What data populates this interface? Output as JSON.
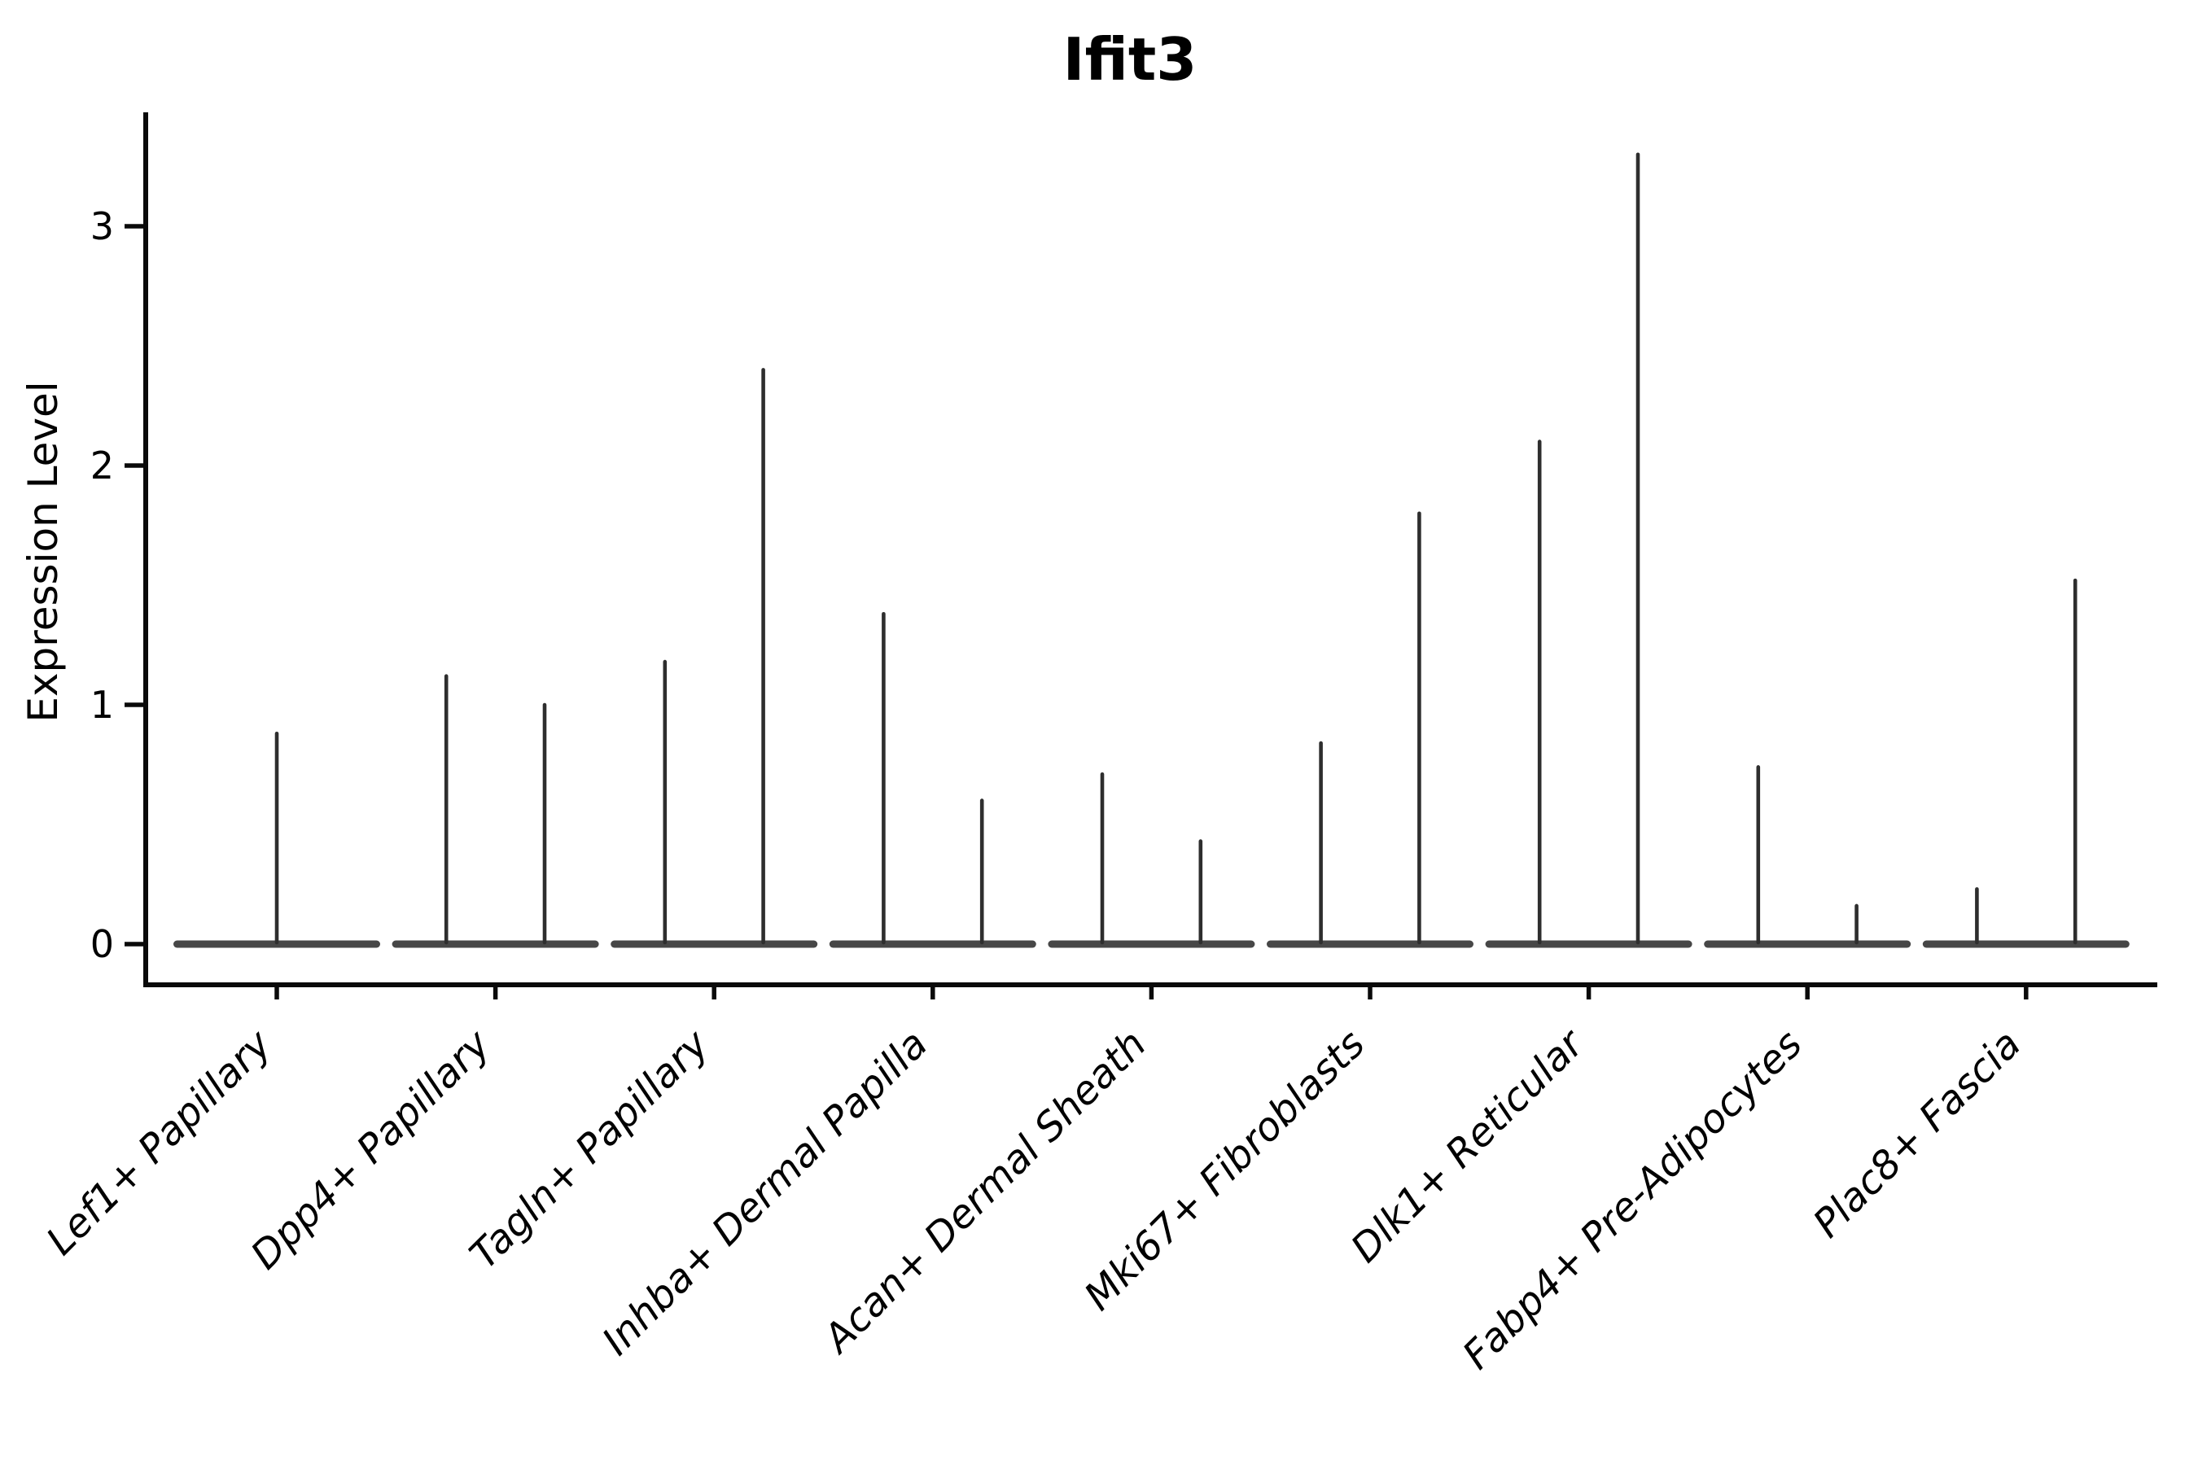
{
  "figure": {
    "title": "Ifit3",
    "y_axis_label": "Expression Level"
  },
  "chart_data": {
    "type": "violin",
    "title": "Ifit3",
    "xlabel": "",
    "ylabel": "Expression Level",
    "yticks": [
      0,
      1,
      2,
      3
    ],
    "ylim": [
      -0.17,
      3.47
    ],
    "grid": false,
    "legend": null,
    "description": "Collapsed violin plot of Ifit3 expression per fibroblast cluster; each violin is a flat body at 0 with a thin tail reaching its maximum expression value",
    "categories": [
      "Lef1+ Papillary",
      "Dpp4+ Papillary",
      "Tagln+ Papillary",
      "Inhba+ Dermal Papilla",
      "Acan+ Dermal Sheath",
      "Mki67+ Fibroblasts",
      "Dlk1+ Reticular",
      "Fabp4+ Pre-Adipocytes",
      "Plac8+ Fascia"
    ],
    "violins": [
      {
        "category": "Lef1+ Papillary",
        "spike_max_values": [
          0.88
        ]
      },
      {
        "category": "Dpp4+ Papillary",
        "spike_max_values": [
          1.12,
          1.0
        ]
      },
      {
        "category": "Tagln+ Papillary",
        "spike_max_values": [
          1.18,
          2.4
        ]
      },
      {
        "category": "Inhba+ Dermal Papilla",
        "spike_max_values": [
          1.38,
          0.6
        ]
      },
      {
        "category": "Acan+ Dermal Sheath",
        "spike_max_values": [
          0.71,
          0.43
        ]
      },
      {
        "category": "Mki67+ Fibroblasts",
        "spike_max_values": [
          0.84,
          1.8
        ]
      },
      {
        "category": "Dlk1+ Reticular",
        "spike_max_values": [
          2.1,
          3.3
        ]
      },
      {
        "category": "Fabp4+ Pre-Adipocytes",
        "spike_max_values": [
          0.74,
          0.16
        ]
      },
      {
        "category": "Plac8+ Fascia",
        "spike_max_values": [
          0.23,
          1.52
        ]
      }
    ],
    "colors": {
      "spike": "#2e2e2e",
      "violin_body": "#474747",
      "axis": "#0a0a0a",
      "text": "#000000",
      "background": "#ffffff"
    }
  }
}
